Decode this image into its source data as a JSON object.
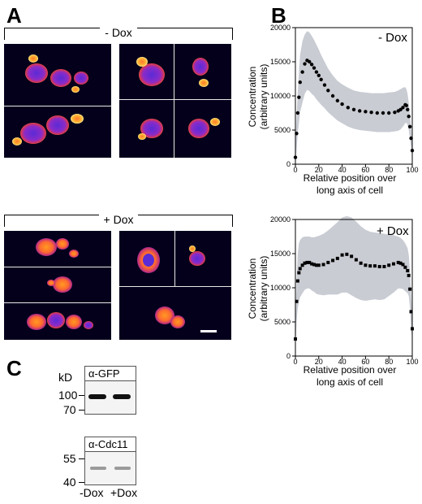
{
  "panels": {
    "a": "A",
    "b": "B",
    "c": "C"
  },
  "conditions": {
    "minus": "- Dox",
    "plus": "+ Dox"
  },
  "chart_common": {
    "ylabel_line1": "Concentration",
    "ylabel_line2": "(arbitrary units)",
    "xlabel_line1": "Relative position over",
    "xlabel_line2": "long axis of cell"
  },
  "chart_data": [
    {
      "type": "line",
      "legend": "- Dox",
      "xlim": [
        0,
        100
      ],
      "ylim": [
        0,
        20000
      ],
      "x_ticks": [
        "0",
        "20",
        "40",
        "60",
        "80",
        "100"
      ],
      "y_ticks": [
        "0",
        "5000",
        "10000",
        "15000",
        "20000"
      ],
      "x": [
        0,
        1,
        2,
        3,
        4,
        6,
        8,
        10,
        12,
        14,
        16,
        18,
        20,
        22,
        25,
        28,
        32,
        36,
        40,
        45,
        50,
        55,
        60,
        65,
        70,
        75,
        80,
        85,
        88,
        90,
        92,
        94,
        95,
        96,
        97,
        98,
        99,
        100
      ],
      "mean": [
        1000,
        4500,
        7500,
        9800,
        12000,
        13500,
        14700,
        15200,
        15000,
        14600,
        14100,
        13500,
        13000,
        12400,
        11600,
        10800,
        10000,
        9300,
        8800,
        8300,
        8000,
        7800,
        7700,
        7600,
        7500,
        7500,
        7500,
        7600,
        7800,
        8000,
        8300,
        8700,
        8600,
        8000,
        7000,
        5500,
        3800,
        2000
      ],
      "sd_upper": [
        2500,
        7000,
        10500,
        13500,
        16000,
        18000,
        19000,
        19500,
        19300,
        18800,
        18200,
        17500,
        16800,
        16000,
        15000,
        14000,
        13000,
        12200,
        11700,
        11200,
        10800,
        10600,
        10500,
        10400,
        10400,
        10400,
        10500,
        10600,
        10800,
        11000,
        11200,
        11300,
        11000,
        10300,
        9000,
        7200,
        5200,
        3000
      ],
      "sd_lower": [
        0,
        2000,
        4500,
        6000,
        7600,
        9000,
        10300,
        10900,
        10700,
        10300,
        10000,
        9500,
        9100,
        8700,
        8200,
        7600,
        7000,
        6400,
        6000,
        5500,
        5200,
        5000,
        4900,
        4800,
        4700,
        4700,
        4700,
        4800,
        4900,
        5100,
        5500,
        6000,
        6100,
        5700,
        5000,
        3800,
        2500,
        1000
      ]
    },
    {
      "type": "line",
      "legend": "+ Dox",
      "xlim": [
        0,
        100
      ],
      "ylim": [
        0,
        20000
      ],
      "x_ticks": [
        "0",
        "20",
        "40",
        "60",
        "80",
        "100"
      ],
      "y_ticks": [
        "0",
        "5000",
        "10000",
        "15000",
        "20000"
      ],
      "x": [
        0,
        1,
        2,
        3,
        4,
        6,
        8,
        10,
        12,
        14,
        16,
        18,
        20,
        24,
        28,
        32,
        36,
        40,
        44,
        48,
        52,
        56,
        60,
        64,
        68,
        72,
        76,
        80,
        84,
        88,
        90,
        92,
        94,
        96,
        97,
        98,
        99,
        100
      ],
      "mean": [
        2500,
        8000,
        11000,
        12200,
        12800,
        13300,
        13600,
        13700,
        13700,
        13500,
        13400,
        13300,
        13300,
        13400,
        13700,
        14000,
        14300,
        14800,
        14900,
        14600,
        14100,
        13600,
        13300,
        13200,
        13200,
        13100,
        13100,
        13300,
        13500,
        13700,
        13600,
        13400,
        13000,
        12500,
        11800,
        9800,
        6500,
        4000
      ],
      "sd_upper": [
        4000,
        11000,
        15000,
        16500,
        17000,
        17400,
        17500,
        17500,
        17500,
        17400,
        17400,
        17500,
        17600,
        17900,
        18400,
        19000,
        19600,
        20300,
        20500,
        20300,
        19700,
        19000,
        18500,
        18200,
        18100,
        18000,
        17900,
        17800,
        17700,
        17500,
        17300,
        17000,
        16500,
        15800,
        14800,
        12500,
        9000,
        5500
      ],
      "sd_lower": [
        1000,
        5000,
        7000,
        7900,
        8600,
        9200,
        9700,
        9900,
        9900,
        9600,
        9400,
        9100,
        9000,
        8900,
        9000,
        9000,
        9000,
        9300,
        9300,
        8900,
        8500,
        8200,
        8100,
        8200,
        8300,
        8200,
        8300,
        8800,
        9300,
        9900,
        9900,
        9800,
        9500,
        9200,
        8800,
        7100,
        4000,
        2500
      ]
    }
  ],
  "blot": {
    "kd_label": "kD",
    "gfp_title": "α-GFP",
    "cdc_title": "α-Cdc11",
    "gfp_markers": [
      "100",
      "70"
    ],
    "cdc_markers": [
      "55",
      "40"
    ],
    "lanes": [
      "-Dox",
      "+Dox"
    ]
  },
  "colors": {
    "sd_band": "#c9ccd3",
    "mean_marker": "#000000",
    "micro_bg": "#04001c"
  }
}
